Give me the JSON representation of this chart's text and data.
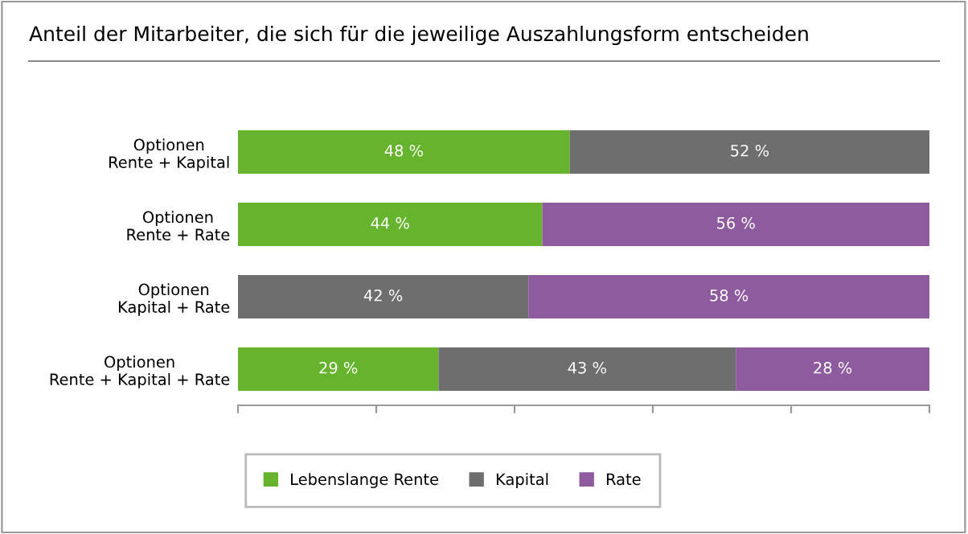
{
  "chart_data": {
    "type": "bar",
    "orientation": "horizontal",
    "stacked": true,
    "title": "Anteil der Mitarbeiter, die sich für die jeweilige Auszahlungsform entscheiden",
    "categories": [
      "Optionen\nRente + Kapital",
      "Optionen\nRente + Rate",
      "Optionen\nKapital + Rate",
      "Optionen\nRente + Kapital + Rate"
    ],
    "series": [
      {
        "name": "Lebenslange Rente",
        "color": "#66b32e",
        "values": [
          48,
          44,
          null,
          29
        ],
        "value_labels": [
          "48 %",
          "44 %",
          null,
          "29 %"
        ]
      },
      {
        "name": "Kapital",
        "color": "#6e6e6e",
        "values": [
          52,
          null,
          42,
          43
        ],
        "value_labels": [
          "52 %",
          null,
          "42 %",
          "43 %"
        ]
      },
      {
        "name": "Rate",
        "color": "#8e5b9f",
        "values": [
          null,
          56,
          58,
          28
        ],
        "value_labels": [
          null,
          "56 %",
          "58 %",
          "28 %"
        ]
      }
    ],
    "xlim": [
      0,
      100
    ],
    "xticks": [
      {
        "value": 0,
        "label": null
      },
      {
        "value": 20,
        "label": null
      },
      {
        "value": 40,
        "label": null
      },
      {
        "value": 60,
        "label": null
      },
      {
        "value": 80,
        "label": null
      },
      {
        "value": 100,
        "label": null
      }
    ],
    "tick_labels": "y",
    "grid": false,
    "legend": "bottom"
  }
}
